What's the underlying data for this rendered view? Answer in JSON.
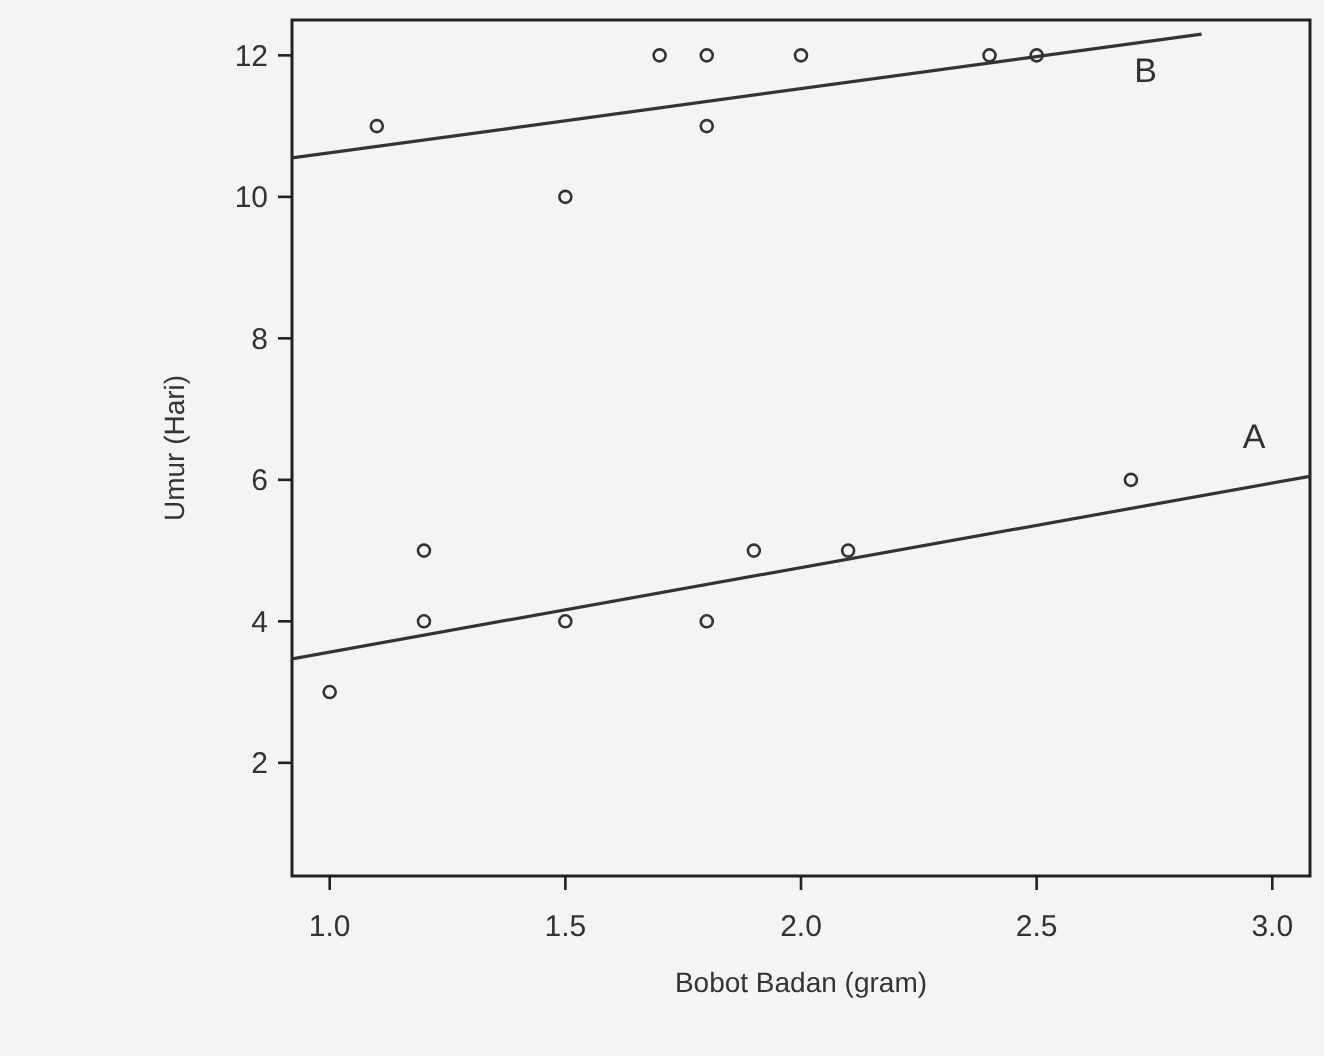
{
  "chart_data": {
    "type": "scatter",
    "xlabel": "Bobot Badan (gram)",
    "ylabel": "Umur (Hari)",
    "xlim": [
      0.92,
      3.08
    ],
    "ylim": [
      0.4,
      12.5
    ],
    "xticks": [
      {
        "value": 1,
        "label": "1.0"
      },
      1.5,
      {
        "value": 2,
        "label": "2.0"
      },
      2.5,
      {
        "value": 3,
        "label": "3.0"
      }
    ],
    "yticks": [
      2,
      4,
      6,
      8,
      10,
      12
    ],
    "grid": false,
    "series": [
      {
        "color": "#333333",
        "marker": "circle",
        "x": [
          1.1,
          1.5,
          1.7,
          1.8,
          1.8,
          2.0,
          2.4,
          2.5,
          1.0,
          1.2,
          1.2,
          1.5,
          1.8,
          1.9,
          2.1,
          2.7
        ],
        "values": [
          11,
          10,
          12,
          12,
          11,
          12,
          12,
          12,
          3,
          5,
          4,
          4,
          4,
          5,
          5,
          6
        ]
      },
      {
        "type": "line",
        "name": "B",
        "color": "#333333",
        "x": [
          0.92,
          2.85
        ],
        "values": [
          10.55,
          12.3
        ]
      },
      {
        "type": "line",
        "name": "A",
        "color": "#333333",
        "x": [
          0.92,
          3.08
        ],
        "values": [
          3.47,
          6.05
        ]
      }
    ]
  }
}
